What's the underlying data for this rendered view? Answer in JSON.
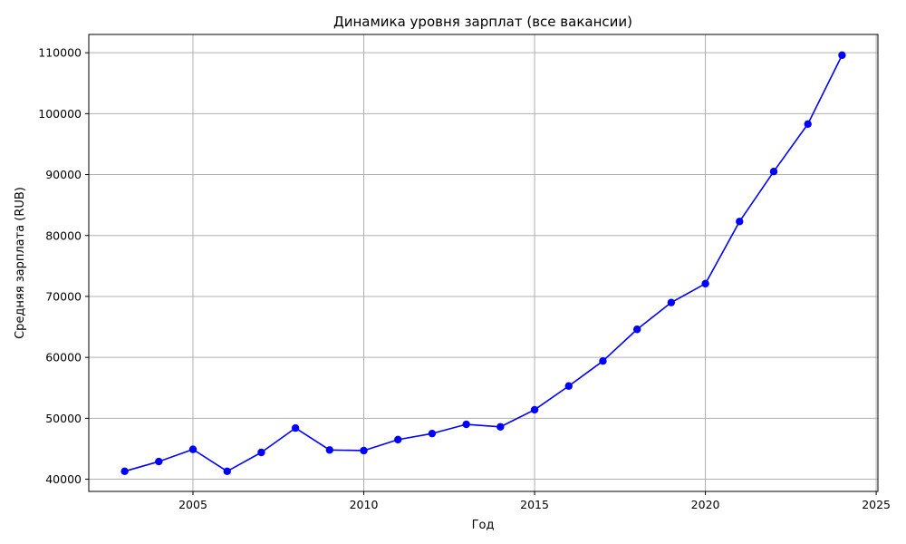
{
  "chart_data": {
    "type": "line",
    "title": "Динамика уровня зарплат (все вакансии)",
    "xlabel": "Год",
    "ylabel": "Средняя зарплата (RUB)",
    "xlim": [
      2001.95,
      2025.05
    ],
    "ylim": [
      38000,
      113000
    ],
    "x_ticks": [
      2005,
      2010,
      2015,
      2020,
      2025
    ],
    "y_ticks": [
      40000,
      50000,
      60000,
      70000,
      80000,
      90000,
      100000,
      110000
    ],
    "grid": true,
    "color": "#0000ff",
    "marker": "circle",
    "x": [
      2003,
      2004,
      2005,
      2006,
      2007,
      2008,
      2009,
      2010,
      2011,
      2012,
      2013,
      2014,
      2015,
      2016,
      2017,
      2018,
      2019,
      2020,
      2021,
      2022,
      2023,
      2024
    ],
    "y": [
      41300,
      42900,
      44900,
      41300,
      44400,
      48400,
      44800,
      44700,
      46500,
      47500,
      49000,
      48600,
      51400,
      55300,
      59400,
      64600,
      69000,
      72100,
      82300,
      90500,
      98300,
      109600
    ]
  }
}
